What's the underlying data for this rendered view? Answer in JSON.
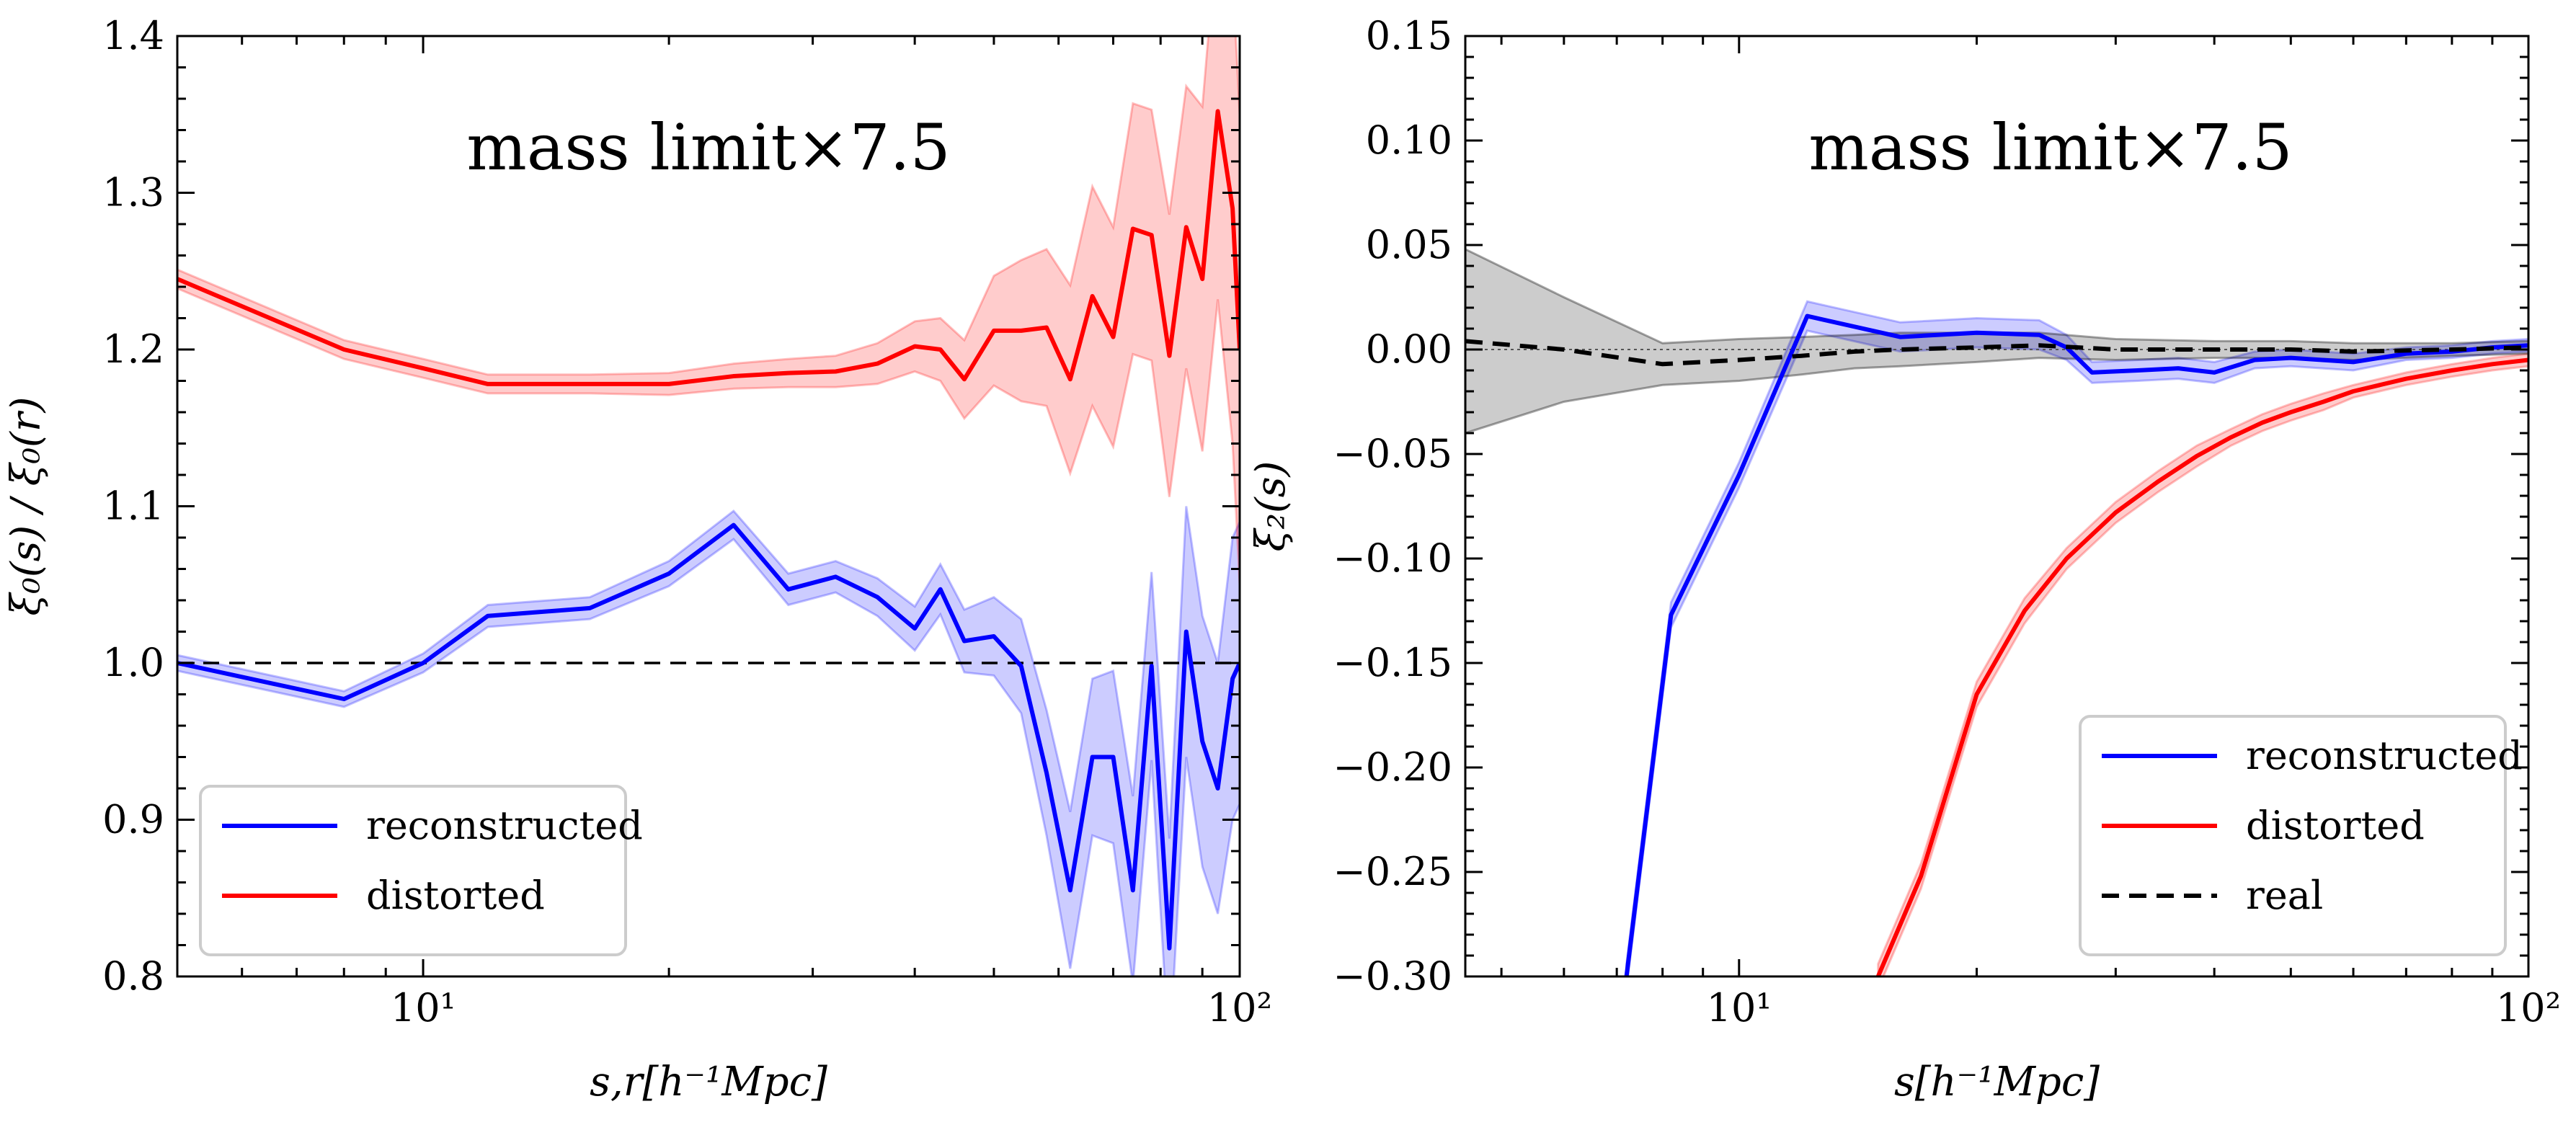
{
  "chart_data": [
    {
      "type": "line",
      "xscale": "log",
      "xlim": [
        5,
        100
      ],
      "ylim": [
        0.8,
        1.4
      ],
      "xlabel": "s,r[h⁻¹Mpc]",
      "ylabel": "ξ₀(s) / ξ₀(r)",
      "annotation": "mass limit×7.5",
      "x_tick_labels": [
        {
          "v": 10,
          "label": "10¹"
        },
        {
          "v": 100,
          "label": "10²"
        }
      ],
      "y_ticks": [
        0.8,
        0.9,
        1.0,
        1.1,
        1.2,
        1.3,
        1.4
      ],
      "y_tick_labels": [
        "0.8",
        "0.9",
        "1.0",
        "1.1",
        "1.2",
        "1.3",
        "1.4"
      ],
      "reference_line": {
        "y": 1.0,
        "style": "dashed",
        "color": "#000000"
      },
      "legend": {
        "placement": "lower-left",
        "entries": [
          "reconstructed",
          "distorted"
        ]
      },
      "series": [
        {
          "name": "reconstructed",
          "color": "#0000ff",
          "band_color": "#0000ff",
          "x": [
            5,
            8,
            10,
            12,
            16,
            20,
            24,
            28,
            32,
            36,
            40,
            43,
            46,
            50,
            54,
            58,
            62,
            66,
            70,
            74,
            78,
            82,
            86,
            90,
            94,
            98,
            100
          ],
          "y": [
            1.0,
            0.977,
            1.0,
            1.03,
            1.035,
            1.057,
            1.088,
            1.047,
            1.055,
            1.042,
            1.022,
            1.047,
            1.014,
            1.017,
            0.998,
            0.93,
            0.855,
            0.94,
            0.94,
            0.855,
            0.998,
            0.818,
            1.02,
            0.95,
            0.92,
            0.99,
            1.0
          ],
          "err": [
            0.005,
            0.005,
            0.006,
            0.007,
            0.007,
            0.008,
            0.009,
            0.01,
            0.01,
            0.012,
            0.014,
            0.016,
            0.02,
            0.025,
            0.03,
            0.04,
            0.05,
            0.05,
            0.055,
            0.06,
            0.06,
            0.07,
            0.08,
            0.08,
            0.08,
            0.09,
            0.09
          ]
        },
        {
          "name": "distorted",
          "color": "#ff0000",
          "band_color": "#ff0000",
          "x": [
            5,
            8,
            10,
            12,
            16,
            20,
            24,
            28,
            32,
            36,
            40,
            43,
            46,
            50,
            54,
            58,
            62,
            66,
            70,
            74,
            78,
            82,
            86,
            90,
            94,
            98,
            100
          ],
          "y": [
            1.245,
            1.2,
            1.188,
            1.178,
            1.178,
            1.178,
            1.183,
            1.185,
            1.186,
            1.191,
            1.202,
            1.2,
            1.181,
            1.212,
            1.212,
            1.214,
            1.181,
            1.234,
            1.208,
            1.277,
            1.273,
            1.196,
            1.278,
            1.245,
            1.352,
            1.29,
            1.2
          ],
          "err": [
            0.006,
            0.006,
            0.006,
            0.006,
            0.006,
            0.007,
            0.008,
            0.009,
            0.01,
            0.013,
            0.016,
            0.02,
            0.025,
            0.035,
            0.045,
            0.05,
            0.06,
            0.07,
            0.07,
            0.08,
            0.08,
            0.09,
            0.09,
            0.11,
            0.12,
            0.15,
            0.15
          ]
        }
      ]
    },
    {
      "type": "line",
      "xscale": "log",
      "xlim": [
        4.5,
        100
      ],
      "ylim": [
        -0.3,
        0.15
      ],
      "xlabel": "s[h⁻¹Mpc]",
      "ylabel": "ξ₂(s)",
      "annotation": "mass limit×7.5",
      "x_tick_labels": [
        {
          "v": 10,
          "label": "10¹"
        },
        {
          "v": 100,
          "label": "10²"
        }
      ],
      "y_ticks": [
        -0.3,
        -0.25,
        -0.2,
        -0.15,
        -0.1,
        -0.05,
        0.0,
        0.05,
        0.1,
        0.15
      ],
      "y_tick_labels": [
        "−0.30",
        "−0.25",
        "−0.20",
        "−0.15",
        "−0.10",
        "−0.05",
        "0.00",
        "0.05",
        "0.10",
        "0.15"
      ],
      "reference_line": {
        "y": 0.0,
        "style": "dotted",
        "color": "#555555"
      },
      "legend": {
        "placement": "lower-right",
        "entries": [
          "reconstructed",
          "distorted",
          "real"
        ]
      },
      "series": [
        {
          "name": "reconstructed",
          "color": "#0000ff",
          "band_color": "#0000ff",
          "style": "solid",
          "x": [
            7.2,
            8.2,
            10,
            12.2,
            16,
            20,
            24,
            26,
            28,
            32,
            36,
            40,
            45,
            50,
            60,
            70,
            80,
            90,
            100
          ],
          "y": [
            -0.3,
            -0.127,
            -0.06,
            0.016,
            0.006,
            0.008,
            0.007,
            0.001,
            -0.011,
            -0.01,
            -0.009,
            -0.011,
            -0.005,
            -0.004,
            -0.006,
            -0.002,
            -0.001,
            0.001,
            0.002
          ],
          "err": [
            0.006,
            0.006,
            0.006,
            0.007,
            0.007,
            0.007,
            0.007,
            0.006,
            0.005,
            0.005,
            0.005,
            0.005,
            0.004,
            0.004,
            0.004,
            0.003,
            0.003,
            0.003,
            0.003
          ]
        },
        {
          "name": "distorted",
          "color": "#ff0000",
          "band_color": "#ff0000",
          "style": "solid",
          "x": [
            15,
            17,
            20,
            23,
            26,
            30,
            34,
            38,
            42,
            46,
            50,
            55,
            60,
            70,
            80,
            90,
            100
          ],
          "y": [
            -0.3,
            -0.252,
            -0.165,
            -0.125,
            -0.1,
            -0.078,
            -0.063,
            -0.051,
            -0.042,
            -0.035,
            -0.03,
            -0.025,
            -0.02,
            -0.014,
            -0.01,
            -0.007,
            -0.005
          ],
          "err": [
            0.006,
            0.006,
            0.006,
            0.006,
            0.005,
            0.005,
            0.005,
            0.005,
            0.004,
            0.004,
            0.004,
            0.004,
            0.003,
            0.003,
            0.003,
            0.003,
            0.003
          ]
        },
        {
          "name": "real",
          "color": "#000000",
          "band_color": "#000000",
          "style": "dashed",
          "x": [
            4.5,
            6,
            8,
            10,
            12,
            14,
            16,
            20,
            24,
            30,
            40,
            50,
            60,
            80,
            100
          ],
          "y": [
            0.004,
            0.0,
            -0.007,
            -0.005,
            -0.003,
            -0.001,
            0.0,
            0.001,
            0.002,
            0.0,
            0.0,
            0.0,
            -0.001,
            0.0,
            0.001
          ],
          "err": [
            0.044,
            0.025,
            0.01,
            0.01,
            0.009,
            0.008,
            0.008,
            0.007,
            0.006,
            0.005,
            0.004,
            0.004,
            0.004,
            0.003,
            0.003
          ]
        }
      ]
    }
  ]
}
